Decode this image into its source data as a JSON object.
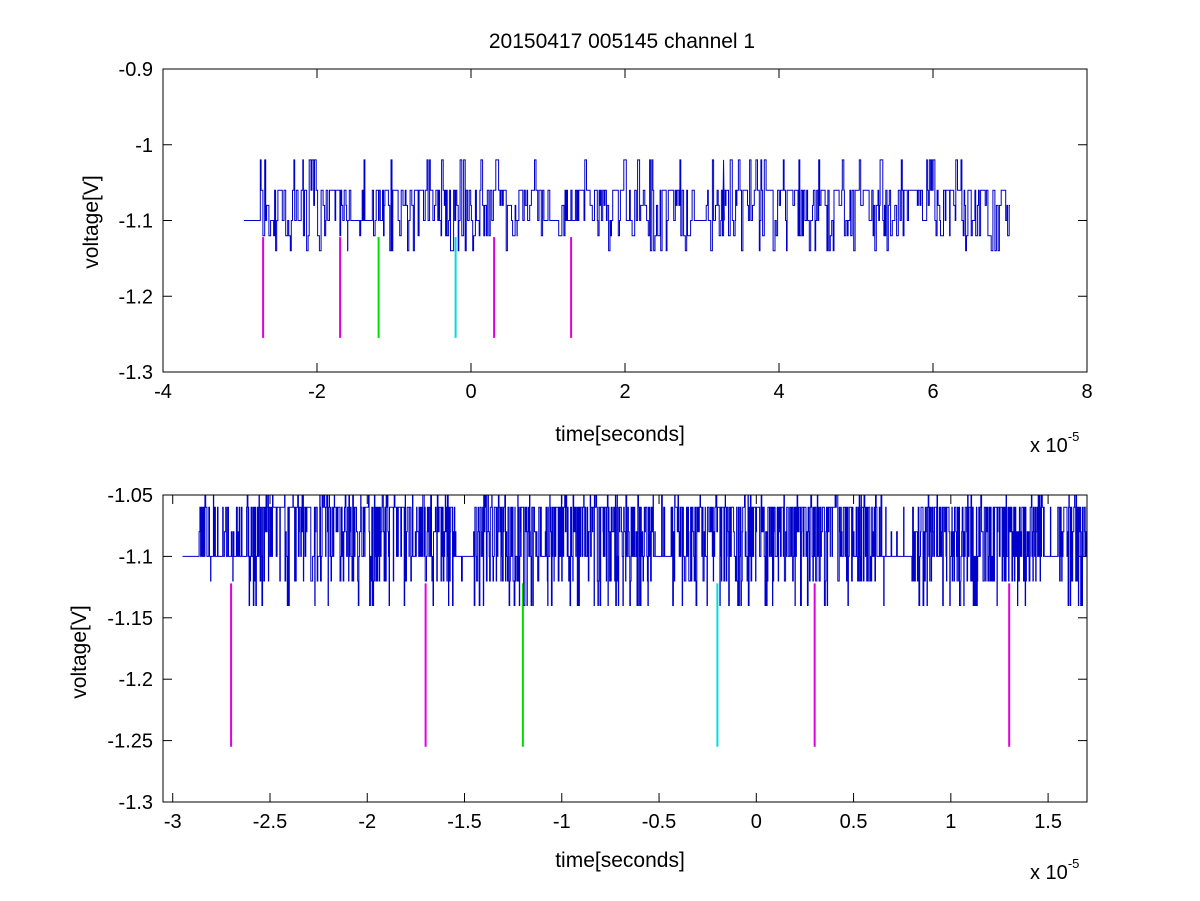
{
  "figure": {
    "title": "20150417 005145 channel 1"
  },
  "chart_data": [
    {
      "type": "line",
      "title": "20150417 005145 channel 1",
      "xlabel": "time[seconds]",
      "ylabel": "voltage[V]",
      "x_exponent_base": "x 10",
      "x_exponent_power": "-5",
      "xlim": [
        -4,
        8
      ],
      "ylim": [
        -1.3,
        -0.9
      ],
      "xticks": [
        -4,
        -2,
        0,
        2,
        4,
        6,
        8
      ],
      "yticks": [
        -1.3,
        -1.2,
        -1.1,
        -1,
        -0.9
      ],
      "xtick_labels": [
        "-4",
        "-2",
        "0",
        "2",
        "4",
        "6",
        "8"
      ],
      "ytick_labels": [
        "-1.3",
        "-1.2",
        "-1.1",
        "-1",
        "-0.9"
      ],
      "signal": {
        "color": "#0000cc",
        "x_range": [
          -2.95,
          7.0
        ],
        "baseline": -1.1,
        "levels": [
          -1.14,
          -1.12,
          -1.1,
          -1.08,
          -1.06
        ],
        "peak": {
          "x": 3.28,
          "y": -1.02
        },
        "segments": [
          {
            "x0": -2.95,
            "x1": -2.75,
            "activity": 0.05
          },
          {
            "x0": -2.75,
            "x1": -1.6,
            "activity": 0.8
          },
          {
            "x0": -1.6,
            "x1": -1.15,
            "activity": 0.3
          },
          {
            "x0": -1.15,
            "x1": 0.6,
            "activity": 0.85
          },
          {
            "x0": 0.6,
            "x1": 1.4,
            "activity": 0.45
          },
          {
            "x0": 1.4,
            "x1": 2.9,
            "activity": 0.85
          },
          {
            "x0": 2.9,
            "x1": 3.1,
            "activity": 0.1
          },
          {
            "x0": 3.1,
            "x1": 7.0,
            "activity": 0.85
          }
        ]
      },
      "markers": [
        {
          "x": -2.7,
          "y0": -1.255,
          "y1": -1.122,
          "color": "#e000e0"
        },
        {
          "x": -1.7,
          "y0": -1.255,
          "y1": -1.122,
          "color": "#e000e0"
        },
        {
          "x": -1.2,
          "y0": -1.255,
          "y1": -1.122,
          "color": "#00dd00"
        },
        {
          "x": -0.2,
          "y0": -1.255,
          "y1": -1.122,
          "color": "#00dddd"
        },
        {
          "x": 0.3,
          "y0": -1.255,
          "y1": -1.122,
          "color": "#e000e0"
        },
        {
          "x": 1.3,
          "y0": -1.255,
          "y1": -1.122,
          "color": "#e000e0"
        }
      ]
    },
    {
      "type": "line",
      "title": "",
      "xlabel": "time[seconds]",
      "ylabel": "voltage[V]",
      "x_exponent_base": "x 10",
      "x_exponent_power": "-5",
      "xlim": [
        -3.05,
        1.7
      ],
      "ylim": [
        -1.3,
        -1.05
      ],
      "xticks": [
        -3,
        -2.5,
        -2,
        -1.5,
        -1,
        -0.5,
        0,
        0.5,
        1,
        1.5
      ],
      "yticks": [
        -1.3,
        -1.25,
        -1.2,
        -1.15,
        -1.1,
        -1.05
      ],
      "xtick_labels": [
        "-3",
        "-2.5",
        "-2",
        "-1.5",
        "-1",
        "-0.5",
        "0",
        "0.5",
        "1",
        "1.5"
      ],
      "ytick_labels": [
        "-1.3",
        "-1.25",
        "-1.2",
        "-1.15",
        "-1.1",
        "-1.05"
      ],
      "signal": {
        "color": "#0000cc",
        "x_range": [
          -2.95,
          1.7
        ],
        "baseline": -1.1,
        "levels": [
          -1.14,
          -1.12,
          -1.1,
          -1.08,
          -1.06
        ],
        "segments": [
          {
            "x0": -2.95,
            "x1": -2.87,
            "activity": 0.0
          },
          {
            "x0": -2.87,
            "x1": -2.82,
            "activity": 0.6
          },
          {
            "x0": -2.82,
            "x1": -2.62,
            "activity": 0.3
          },
          {
            "x0": -2.62,
            "x1": -1.55,
            "activity": 0.8
          },
          {
            "x0": -1.55,
            "x1": -1.45,
            "activity": 0.2
          },
          {
            "x0": -1.45,
            "x1": -0.52,
            "activity": 0.8
          },
          {
            "x0": -0.52,
            "x1": -0.43,
            "activity": 0.2
          },
          {
            "x0": -0.43,
            "x1": 0.62,
            "activity": 0.8
          },
          {
            "x0": 0.62,
            "x1": 0.8,
            "activity": 0.1
          },
          {
            "x0": 0.8,
            "x1": 1.48,
            "activity": 0.8
          },
          {
            "x0": 1.48,
            "x1": 1.55,
            "activity": 0.05
          },
          {
            "x0": 1.55,
            "x1": 1.7,
            "activity": 0.8
          }
        ]
      },
      "markers": [
        {
          "x": -2.7,
          "y0": -1.255,
          "y1": -1.122,
          "color": "#e000e0"
        },
        {
          "x": -1.7,
          "y0": -1.255,
          "y1": -1.122,
          "color": "#e000e0"
        },
        {
          "x": -1.2,
          "y0": -1.255,
          "y1": -1.122,
          "color": "#00dd00"
        },
        {
          "x": -0.2,
          "y0": -1.255,
          "y1": -1.122,
          "color": "#00dddd"
        },
        {
          "x": 0.3,
          "y0": -1.255,
          "y1": -1.122,
          "color": "#e000e0"
        },
        {
          "x": 1.3,
          "y0": -1.255,
          "y1": -1.122,
          "color": "#e000e0"
        }
      ]
    }
  ]
}
